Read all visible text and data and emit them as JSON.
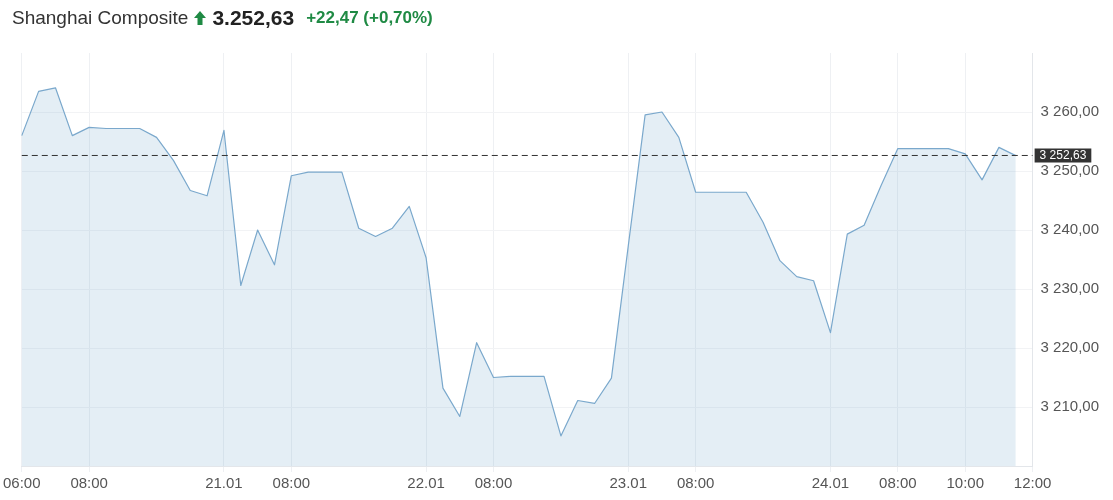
{
  "chart_data": {
    "type": "area",
    "title": "Shanghai Composite",
    "subtitle": "3.252,63",
    "annotations": [
      "+22,47 (+0,70%)"
    ],
    "categories": [
      "06:00",
      null,
      null,
      null,
      "08:00",
      null,
      null,
      null,
      null,
      null,
      null,
      null,
      "21.01",
      null,
      null,
      null,
      "08:00",
      null,
      null,
      null,
      null,
      null,
      null,
      null,
      "22.01",
      null,
      null,
      null,
      "08:00",
      null,
      null,
      null,
      null,
      null,
      null,
      null,
      "23.01",
      null,
      null,
      null,
      "08:00",
      null,
      null,
      null,
      null,
      null,
      null,
      null,
      "24.01",
      null,
      null,
      null,
      "08:00",
      null,
      null,
      null,
      "10:00",
      null,
      null,
      null,
      "12:00"
    ],
    "series": [
      {
        "color": "#7aa8cc",
        "values": [
          3256.0,
          3263.5,
          3264.1,
          3256.0,
          3257.4,
          3257.2,
          3257.2,
          3257.2,
          3255.7,
          3251.8,
          3246.7,
          3245.8,
          3256.9,
          3230.6,
          3240.0,
          3234.1,
          3249.2,
          3249.8,
          3249.8,
          3249.8,
          3240.3,
          3238.9,
          3240.3,
          3244.0,
          3235.3,
          3213.2,
          3208.4,
          3220.9,
          3215.0,
          3215.2,
          3215.2,
          3215.2,
          3205.1,
          3211.1,
          3210.6,
          3214.9,
          3237.3,
          3259.5,
          3260.0,
          3255.7,
          3246.4,
          3246.4,
          3246.4,
          3246.4,
          3241.3,
          3234.8,
          3232.1,
          3231.4,
          3222.6,
          3239.3,
          3240.8,
          3247.5,
          3253.8,
          3253.8,
          3253.8,
          3253.8,
          3252.9,
          3248.5,
          3254.0,
          3252.6,
          null
        ]
      }
    ],
    "ylim": [
      3200,
      3270
    ],
    "yticks": [
      {
        "value": 3210,
        "label": "3 210,00"
      },
      {
        "value": 3220,
        "label": "3 220,00"
      },
      {
        "value": 3230,
        "label": "3 230,00"
      },
      {
        "value": 3240,
        "label": "3 240,00"
      },
      {
        "value": 3250,
        "label": "3 250,00"
      },
      {
        "value": 3260,
        "label": "3 260,00"
      }
    ],
    "ref_lines": [
      {
        "axis": "y",
        "value": 3252.63,
        "label": "3 252,63",
        "color": "#333333",
        "line_style": "dashed"
      }
    ],
    "grid": true,
    "legend": false,
    "marker": "none",
    "line_style": "solid"
  }
}
